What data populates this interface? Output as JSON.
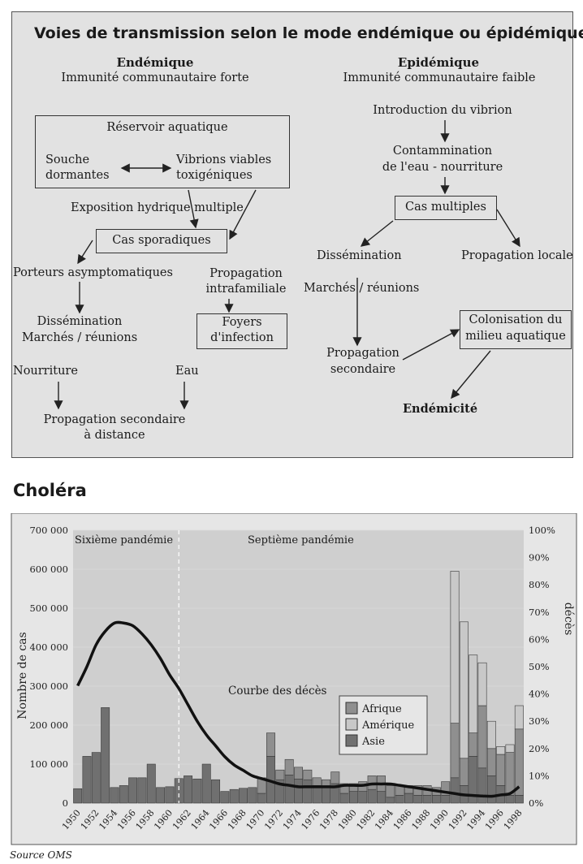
{
  "diagram": {
    "title": "Voies de transmission selon le mode endémique ou épidémique",
    "endemic": {
      "heading": "Endémique",
      "subheading": "Immunité communautaire forte",
      "reservoir_label": "Réservoir aquatique",
      "dormant_line1": "Souche",
      "dormant_line2": "dormantes",
      "viable_line1": "Vibrions viables",
      "viable_line2": "toxigéniques",
      "exposure": "Exposition hydrique multiple",
      "sporadic": "Cas sporadiques",
      "carriers": "Porteurs asymptomatiques",
      "intrafamilial_line1": "Propagation",
      "intrafamilial_line2": "intrafamiliale",
      "foci_line1": "Foyers",
      "foci_line2": "d'infection",
      "dissemination": "Dissémination",
      "markets": "Marchés / réunions",
      "food": "Nourriture",
      "water": "Eau",
      "distant_line1": "Propagation secondaire",
      "distant_line2": "à distance"
    },
    "epidemic": {
      "heading": "Epidémique",
      "subheading": "Immunité communautaire faible",
      "introduction": "Introduction du vibrion",
      "contamination_line1": "Contammination",
      "contamination_line2": "de l'eau - nourriture",
      "multiple": "Cas multiples",
      "dissemination": "Dissémination",
      "local": "Propagation locale",
      "markets": "Marchés / réunions",
      "colonisation_line1": "Colonisation du",
      "colonisation_line2": "milieu aquatique",
      "secondary_line1": "Propagation",
      "secondary_line2": "secondaire",
      "endemicity": "Endémicité"
    }
  },
  "section_title": "Choléra",
  "source": "Source OMS",
  "chart_data": {
    "type": "bar",
    "stacked": true,
    "years": [
      1950,
      1951,
      1952,
      1953,
      1954,
      1955,
      1956,
      1957,
      1958,
      1959,
      1960,
      1961,
      1962,
      1963,
      1964,
      1965,
      1966,
      1967,
      1968,
      1969,
      1970,
      1971,
      1972,
      1973,
      1974,
      1975,
      1976,
      1977,
      1978,
      1979,
      1980,
      1981,
      1982,
      1983,
      1984,
      1985,
      1986,
      1987,
      1988,
      1989,
      1990,
      1991,
      1992,
      1993,
      1994,
      1995,
      1996,
      1997,
      1998
    ],
    "x_tick_labels": [
      "1950",
      "1952",
      "1954",
      "1956",
      "1958",
      "1960",
      "1962",
      "1964",
      "1966",
      "1968",
      "1970",
      "1972",
      "1974",
      "1976",
      "1978",
      "1980",
      "1982",
      "1984",
      "1986",
      "1988",
      "1990",
      "1992",
      "1994",
      "1996",
      "1998"
    ],
    "series": [
      {
        "name": "Afrique",
        "color": "#8f8f8f",
        "values": [
          0,
          0,
          0,
          0,
          0,
          0,
          0,
          0,
          0,
          0,
          0,
          0,
          0,
          0,
          0,
          0,
          0,
          0,
          0,
          0,
          40000,
          60000,
          25000,
          40000,
          30000,
          25000,
          20000,
          20000,
          30000,
          25000,
          20000,
          25000,
          35000,
          40000,
          30000,
          25000,
          20000,
          25000,
          25000,
          20000,
          35000,
          140000,
          70000,
          60000,
          160000,
          70000,
          80000,
          110000,
          170000
        ]
      },
      {
        "name": "Amérique",
        "color": "#c8c8c8",
        "values": [
          0,
          0,
          0,
          0,
          0,
          0,
          0,
          0,
          0,
          0,
          0,
          0,
          0,
          0,
          0,
          0,
          0,
          0,
          0,
          0,
          0,
          0,
          0,
          0,
          0,
          0,
          0,
          0,
          0,
          0,
          0,
          0,
          0,
          0,
          0,
          0,
          0,
          0,
          0,
          0,
          0,
          390000,
          350000,
          200000,
          110000,
          70000,
          20000,
          20000,
          60000
        ]
      },
      {
        "name": "Asie",
        "color": "#707070",
        "values": [
          37000,
          120000,
          130000,
          245000,
          40000,
          45000,
          65000,
          65000,
          100000,
          40000,
          42000,
          63000,
          70000,
          62000,
          100000,
          60000,
          30000,
          35000,
          38000,
          40000,
          25000,
          120000,
          60000,
          72000,
          62000,
          60000,
          45000,
          40000,
          50000,
          25000,
          30000,
          30000,
          35000,
          30000,
          15000,
          20000,
          25000,
          20000,
          20000,
          20000,
          20000,
          65000,
          45000,
          120000,
          90000,
          70000,
          45000,
          20000,
          20000
        ]
      }
    ],
    "deaths_curve": {
      "name": "Courbe des décès",
      "percent": [
        43,
        50,
        58,
        63,
        66,
        66,
        65,
        62,
        58,
        53,
        47,
        42,
        36,
        30,
        25,
        21,
        17,
        14,
        12,
        10,
        9,
        8,
        7,
        6.5,
        6,
        6,
        6,
        6,
        6,
        6.5,
        6.5,
        6.5,
        7,
        7,
        7,
        6.5,
        6,
        5.5,
        5,
        4.5,
        4,
        3.5,
        3,
        2.8,
        2.6,
        2.5,
        3,
        3.5,
        6
      ]
    },
    "pandemics": [
      "Sixième pandémie",
      "Septième pandémie"
    ],
    "pandemic_boundary_year": 1961,
    "y_left": {
      "label": "Nombre de cas",
      "min": 0,
      "max": 700000,
      "ticks": [
        "0",
        "100 000",
        "200 000",
        "300 000",
        "400 000",
        "500 000",
        "600 000",
        "700 000"
      ]
    },
    "y_right": {
      "label": "décès",
      "min": 0,
      "max": 100,
      "ticks": [
        "0%",
        "10%",
        "20%",
        "30%",
        "40%",
        "50%",
        "60%",
        "70%",
        "80%",
        "90%",
        "100%"
      ]
    },
    "legend": [
      "Afrique",
      "Amérique",
      "Asie"
    ],
    "legend_position": "right-center"
  }
}
